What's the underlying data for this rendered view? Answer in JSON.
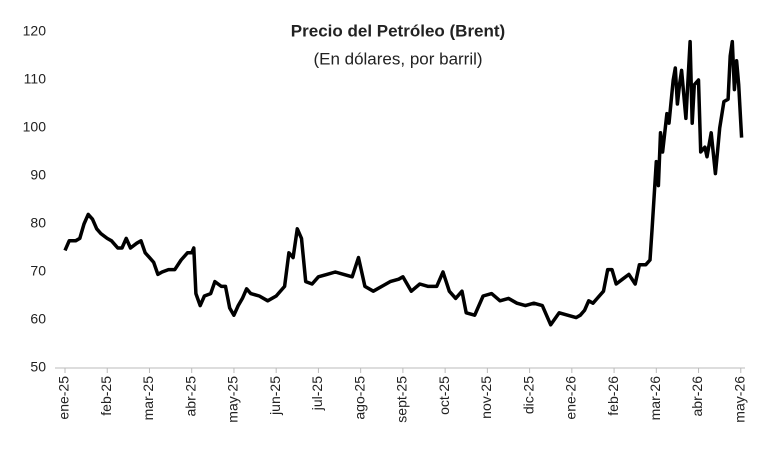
{
  "chart_data": {
    "type": "line",
    "title": "Precio del Petróleo (Brent)",
    "subtitle": "(En dólares, por barril)",
    "x": [
      0,
      0.1,
      0.25,
      0.35,
      0.45,
      0.5,
      0.55,
      0.65,
      0.75,
      0.85,
      1.0,
      1.1,
      1.25,
      1.35,
      1.45,
      1.55,
      1.7,
      1.8,
      1.9,
      2.0,
      2.1,
      2.2,
      2.3,
      2.45,
      2.6,
      2.75,
      2.9,
      3.0,
      3.05,
      3.1,
      3.2,
      3.3,
      3.45,
      3.55,
      3.7,
      3.8,
      3.9,
      4.0,
      4.1,
      4.2,
      4.3,
      4.4,
      4.6,
      4.8,
      5.0,
      5.2,
      5.3,
      5.4,
      5.5,
      5.6,
      5.7,
      5.85,
      6.0,
      6.2,
      6.4,
      6.6,
      6.8,
      6.95,
      7.1,
      7.3,
      7.5,
      7.7,
      7.9,
      8.0,
      8.2,
      8.4,
      8.6,
      8.8,
      8.95,
      9.1,
      9.25,
      9.4,
      9.5,
      9.7,
      9.9,
      10.1,
      10.3,
      10.5,
      10.7,
      10.9,
      11.1,
      11.3,
      11.5,
      11.7,
      11.9,
      12.1,
      12.2,
      12.3,
      12.4,
      12.5,
      12.6,
      12.75,
      12.85,
      12.95,
      13.05,
      13.2,
      13.35,
      13.5,
      13.6,
      13.75,
      13.85,
      13.9,
      14.0,
      14.05,
      14.1,
      14.15,
      14.25,
      14.3,
      14.4,
      14.45,
      14.5,
      14.55,
      14.6,
      14.7,
      14.8,
      14.85,
      14.9,
      15.0,
      15.05,
      15.15,
      15.2,
      15.3,
      15.4,
      15.45,
      15.5,
      15.6,
      15.7,
      15.75,
      15.8,
      15.85,
      15.9,
      15.95,
      16.0,
      16.02
    ],
    "series": [
      {
        "name": "Brent",
        "color": "#000000",
        "values": [
          74.5,
          76.5,
          76.5,
          77,
          80,
          81,
          82,
          81,
          79,
          78,
          77,
          76.5,
          75,
          75,
          77,
          75,
          76,
          76.5,
          74,
          73,
          72,
          69.5,
          70,
          70.5,
          70.5,
          72.5,
          74,
          74,
          75,
          65.5,
          63,
          65,
          65.5,
          68,
          67,
          67,
          62.5,
          61,
          63,
          64.5,
          66.5,
          65.5,
          65,
          64,
          65,
          67,
          74,
          73,
          79,
          77,
          68,
          67.5,
          69,
          69.5,
          70,
          69.5,
          69,
          73,
          67,
          66,
          67,
          68,
          68.5,
          69,
          66,
          67.5,
          67,
          67,
          70,
          66,
          64.5,
          66,
          61.5,
          61,
          65,
          65.5,
          64,
          64.5,
          63.5,
          63,
          63.5,
          63,
          59,
          61.5,
          61,
          60.5,
          61,
          62,
          64,
          63.5,
          64.5,
          66,
          70.5,
          70.5,
          67.5,
          68.5,
          69.5,
          67.5,
          71.5,
          71.5,
          72.5,
          79,
          93,
          88,
          99,
          95,
          103,
          101,
          110,
          112.5,
          105,
          109,
          112,
          102,
          118,
          101,
          109,
          110,
          95,
          96,
          94,
          99,
          90.5,
          95,
          100,
          105.5,
          106,
          115,
          118,
          108,
          114,
          109,
          101,
          98
        ]
      }
    ],
    "xlim": [
      0,
      16.1
    ],
    "xticks": [
      {
        "value": 0,
        "label": "ene-25"
      },
      {
        "value": 1,
        "label": "feb-25"
      },
      {
        "value": 2,
        "label": "mar-25"
      },
      {
        "value": 3,
        "label": "abr-25"
      },
      {
        "value": 4,
        "label": "may-25"
      },
      {
        "value": 5,
        "label": "jun-25"
      },
      {
        "value": 6,
        "label": "jul-25"
      },
      {
        "value": 7,
        "label": "ago-25"
      },
      {
        "value": 8,
        "label": "sept-25"
      },
      {
        "value": 9,
        "label": "oct-25"
      },
      {
        "value": 10,
        "label": "nov-25"
      },
      {
        "value": 11,
        "label": "dic-25"
      },
      {
        "value": 12,
        "label": "ene-26"
      },
      {
        "value": 13,
        "label": "feb-26"
      },
      {
        "value": 14,
        "label": "mar-26"
      },
      {
        "value": 15,
        "label": "abr-26"
      },
      {
        "value": 16,
        "label": "may-26"
      }
    ],
    "ylim": [
      50,
      120
    ],
    "yticks": [
      50,
      60,
      70,
      80,
      90,
      100,
      110,
      120
    ],
    "grid": false
  }
}
